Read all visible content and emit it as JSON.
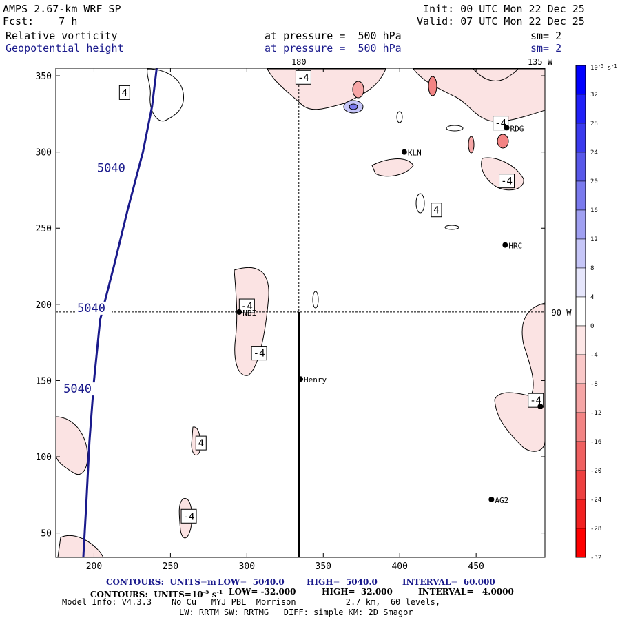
{
  "header": {
    "model": "AMPS 2.67-km WRF SP",
    "fcst": "Fcst:    7 h",
    "init": "Init: 00 UTC Mon 22 Dec 25",
    "valid": "Valid: 07 UTC Mon 22 Dec 25",
    "field1": "Relative vorticity",
    "field1_level": "at pressure =  500 hPa",
    "field1_sm": "sm= 2",
    "field2": "Geopotential height",
    "field2_level": "at pressure =  500 hPa",
    "field2_sm": "sm= 2"
  },
  "chart_data": {
    "type": "contour-map",
    "xlim": [
      175,
      495
    ],
    "ylim": [
      34,
      355
    ],
    "x_ticks": [
      "200",
      "250",
      "300",
      "350",
      "400",
      "450"
    ],
    "y_ticks": [
      "50",
      "100",
      "150",
      "200",
      "250",
      "300",
      "350"
    ],
    "x_tick_values": [
      200,
      250,
      300,
      350,
      400,
      450
    ],
    "y_tick_values": [
      50,
      100,
      150,
      200,
      250,
      300,
      350
    ],
    "reference_labels": {
      "lon_180": "180",
      "lon_135w": "135 W",
      "lon_90w": "90 W"
    },
    "crosshair": {
      "x": 334,
      "y": 195
    },
    "cross_section_line": {
      "x": 334,
      "y_from": 34,
      "y_to": 195
    },
    "height_contour": {
      "value": 5040,
      "label": "5040",
      "points": [
        [
          193,
          34
        ],
        [
          195,
          70
        ],
        [
          197,
          110
        ],
        [
          200,
          150
        ],
        [
          204,
          190
        ],
        [
          213,
          225
        ],
        [
          222,
          262
        ],
        [
          232,
          300
        ],
        [
          238,
          330
        ],
        [
          241,
          355
        ]
      ],
      "labels_at": [
        [
          202,
          287
        ],
        [
          189,
          195
        ],
        [
          180,
          142
        ]
      ]
    },
    "stations": [
      {
        "name": "Henry",
        "x": 335,
        "y": 151
      },
      {
        "name": "NBI",
        "x": 295,
        "y": 195
      },
      {
        "name": "KLN",
        "x": 403,
        "y": 300
      },
      {
        "name": "HRC",
        "x": 469,
        "y": 239
      },
      {
        "name": "RDG",
        "x": 470,
        "y": 316
      },
      {
        "name": "AG2",
        "x": 460,
        "y": 72
      },
      {
        "name": "",
        "x": 492,
        "y": 133
      }
    ],
    "vorticity_labels": [
      {
        "label": "4",
        "x": 220,
        "y": 339
      },
      {
        "label": "-4",
        "x": 337,
        "y": 349
      },
      {
        "label": "4",
        "x": 424,
        "y": 262
      },
      {
        "label": "-4",
        "x": 466,
        "y": 319
      },
      {
        "label": "-4",
        "x": 470,
        "y": 281
      },
      {
        "label": "-4",
        "x": 300,
        "y": 199
      },
      {
        "label": "-4",
        "x": 308,
        "y": 168
      },
      {
        "label": "4",
        "x": 270,
        "y": 109
      },
      {
        "label": "-4",
        "x": 262,
        "y": 61
      },
      {
        "label": "-4",
        "x": 489,
        "y": 137
      }
    ],
    "colorbar": {
      "unit_label": "10",
      "unit_exp": "-5",
      "unit_suffix": "s",
      "unit_suffix_exp": "-1",
      "labels": [
        "32",
        "28",
        "24",
        "20",
        "16",
        "12",
        "8",
        "4",
        "0",
        "-4",
        "-8",
        "-12",
        "-16",
        "-20",
        "-24",
        "-28",
        "-32"
      ],
      "colors": [
        "#0000ff",
        "#2020f8",
        "#3a3aee",
        "#5858ea",
        "#7a7aee",
        "#a0a0f2",
        "#c6c6f8",
        "#e6e6fc",
        "#ffffff",
        "#fde6e6",
        "#fac8c8",
        "#f6a6a6",
        "#f38484",
        "#f06060",
        "#ee4040",
        "#f22020",
        "#ff0000"
      ]
    }
  },
  "footer": {
    "contours1_head": "CONTOURS:  UNITS=m",
    "contours1_low": "LOW=  5040.0",
    "contours1_high": "HIGH=  5040.0",
    "contours1_interval": "INTERVAL=  60.000",
    "contours2_head": "CONTOURS:  UNITS=10",
    "contours2_exp": "-5",
    "contours2_s": "s",
    "contours2_sexp": "-1",
    "contours2_low": "LOW= -32.000",
    "contours2_high": "HIGH=  32.000",
    "contours2_interval": "INTERVAL=   4.0000",
    "model_info": "Model Info: V4.3.3    No Cu   MYJ PBL  Morrison          2.7 km,  60 levels,",
    "physics": "LW: RRTM SW: RRTMG   DIFF: simple KM: 2D Smagor"
  }
}
